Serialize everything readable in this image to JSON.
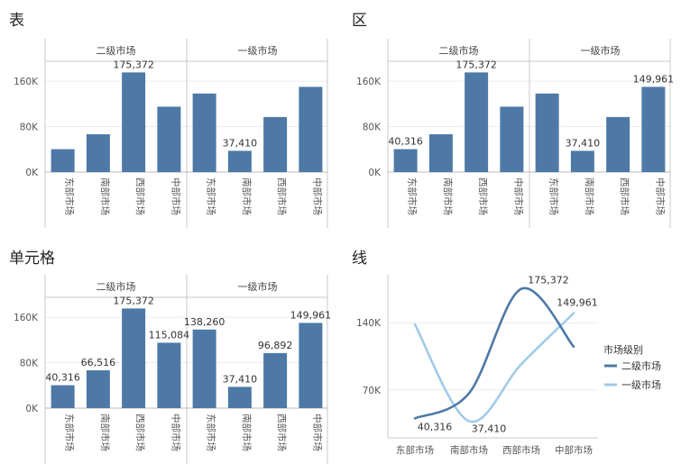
{
  "chart_data": [
    {
      "type": "bar",
      "title": "表",
      "groups": [
        "二级市场",
        "一级市场"
      ],
      "categories": [
        "东部市场",
        "南部市场",
        "西部市场",
        "中部市场"
      ],
      "series": [
        {
          "name": "二级市场",
          "values": [
            40316,
            66516,
            175372,
            115084
          ]
        },
        {
          "name": "一级市场",
          "values": [
            138260,
            37410,
            96892,
            149961
          ]
        }
      ],
      "data_labels": [
        {
          "group": 0,
          "index": 2,
          "text": "175,372"
        },
        {
          "group": 1,
          "index": 1,
          "text": "37,410"
        }
      ],
      "yticks": [
        0,
        80000,
        160000
      ],
      "ytick_labels": [
        "0K",
        "80K",
        "160K"
      ],
      "ylim": [
        0,
        195000
      ],
      "grid": true
    },
    {
      "type": "bar",
      "title": "区",
      "groups": [
        "二级市场",
        "一级市场"
      ],
      "categories": [
        "东部市场",
        "南部市场",
        "西部市场",
        "中部市场"
      ],
      "series": [
        {
          "name": "二级市场",
          "values": [
            40316,
            66516,
            175372,
            115084
          ]
        },
        {
          "name": "一级市场",
          "values": [
            138260,
            37410,
            96892,
            149961
          ]
        }
      ],
      "data_labels": [
        {
          "group": 0,
          "index": 0,
          "text": "40,316"
        },
        {
          "group": 0,
          "index": 2,
          "text": "175,372"
        },
        {
          "group": 1,
          "index": 1,
          "text": "37,410"
        },
        {
          "group": 1,
          "index": 3,
          "text": "149,961"
        }
      ],
      "yticks": [
        0,
        80000,
        160000
      ],
      "ytick_labels": [
        "0K",
        "80K",
        "160K"
      ],
      "ylim": [
        0,
        195000
      ],
      "grid": true
    },
    {
      "type": "bar",
      "title": "单元格",
      "groups": [
        "二级市场",
        "一级市场"
      ],
      "categories": [
        "东部市场",
        "南部市场",
        "西部市场",
        "中部市场"
      ],
      "series": [
        {
          "name": "二级市场",
          "values": [
            40316,
            66516,
            175372,
            115084
          ]
        },
        {
          "name": "一级市场",
          "values": [
            138260,
            37410,
            96892,
            149961
          ]
        }
      ],
      "data_labels": [
        {
          "group": 0,
          "index": 0,
          "text": "40,316"
        },
        {
          "group": 0,
          "index": 1,
          "text": "66,516"
        },
        {
          "group": 0,
          "index": 2,
          "text": "175,372"
        },
        {
          "group": 0,
          "index": 3,
          "text": "115,084"
        },
        {
          "group": 1,
          "index": 0,
          "text": "138,260"
        },
        {
          "group": 1,
          "index": 1,
          "text": "37,410"
        },
        {
          "group": 1,
          "index": 2,
          "text": "96,892"
        },
        {
          "group": 1,
          "index": 3,
          "text": "149,961"
        }
      ],
      "yticks": [
        0,
        80000,
        160000
      ],
      "ytick_labels": [
        "0K",
        "80K",
        "160K"
      ],
      "ylim": [
        0,
        195000
      ],
      "grid": true
    },
    {
      "type": "line",
      "title": "线",
      "categories": [
        "东部市场",
        "南部市场",
        "西部市场",
        "中部市场"
      ],
      "series": [
        {
          "name": "二级市场",
          "values": [
            40316,
            66516,
            175372,
            115084
          ],
          "color": "#4e79a7"
        },
        {
          "name": "一级市场",
          "values": [
            138260,
            37410,
            96892,
            149961
          ],
          "color": "#a0cbe8"
        }
      ],
      "data_labels": [
        {
          "series": 0,
          "index": 0,
          "text": "40,316"
        },
        {
          "series": 0,
          "index": 2,
          "text": "175,372"
        },
        {
          "series": 1,
          "index": 1,
          "text": "37,410"
        },
        {
          "series": 1,
          "index": 3,
          "text": "149,961"
        }
      ],
      "yticks": [
        70000,
        140000
      ],
      "ytick_labels": [
        "70K",
        "140K"
      ],
      "ylim": [
        20000,
        190000
      ],
      "legend_title": "市场级别",
      "legend_position": "right",
      "grid": true
    }
  ],
  "colors": {
    "bar": "#4e79a7",
    "line_primary": "#4e79a7",
    "line_secondary": "#a0cbe8"
  }
}
